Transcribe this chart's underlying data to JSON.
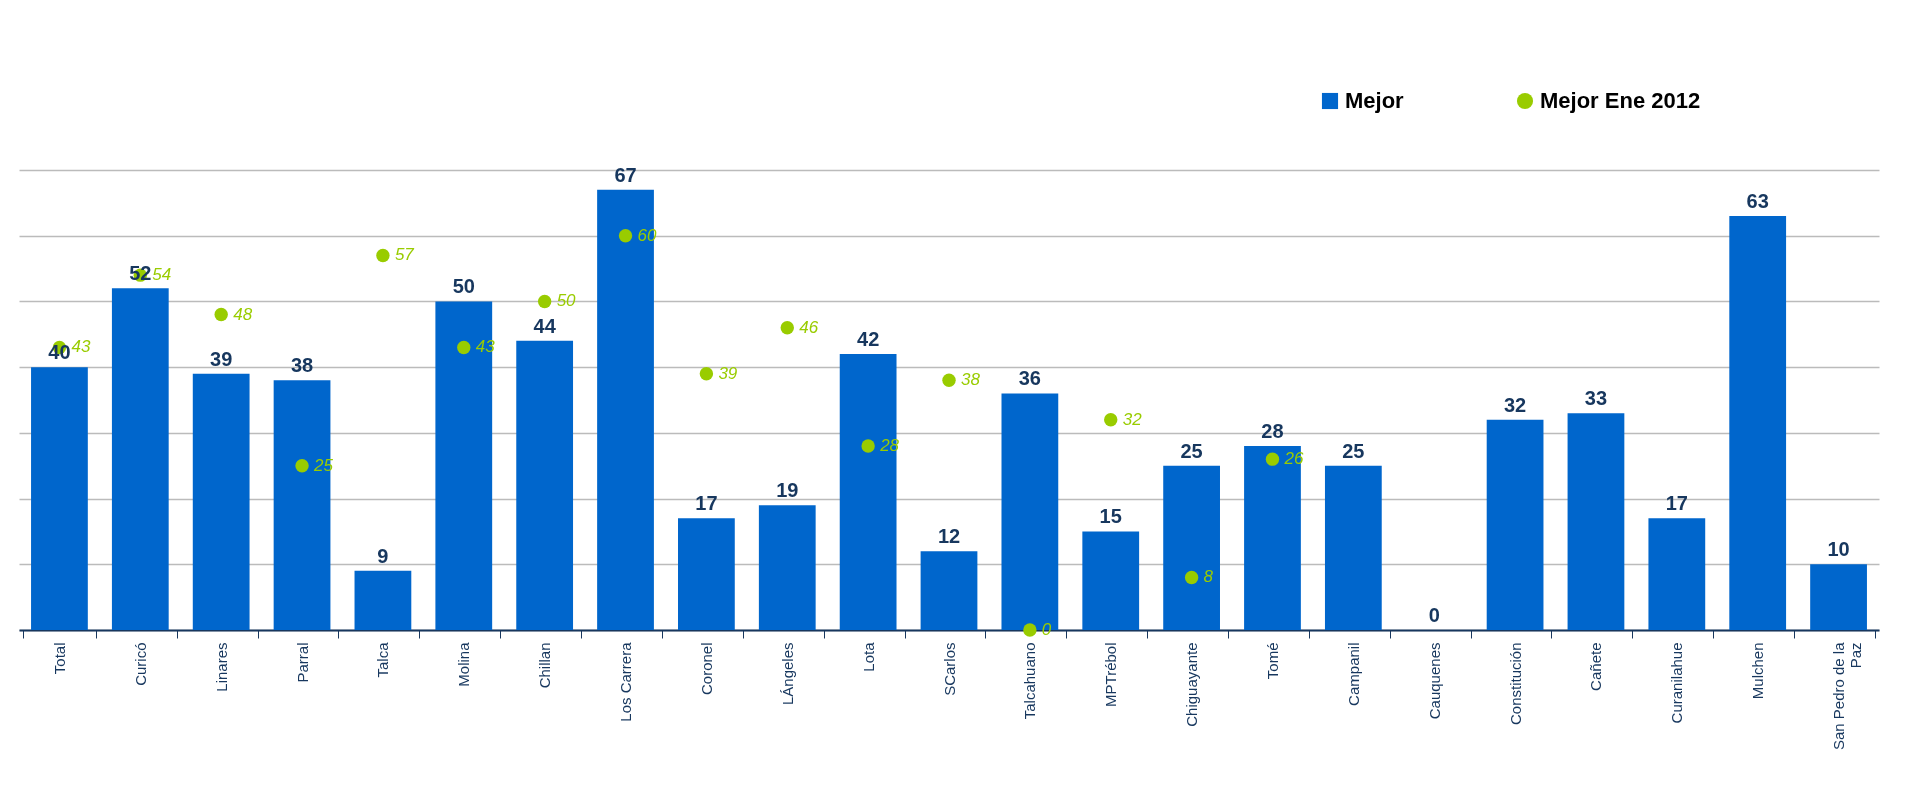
{
  "chart_data": {
    "type": "bar",
    "categories": [
      "Total",
      "Curicó",
      "Linares",
      "Parral",
      "Talca",
      "Molina",
      "Chillan",
      "Los Carrera",
      "Coronel",
      "LÁngeles",
      "Lota",
      "SCarlos",
      "Talcahuano",
      "MPTrébol",
      "Chiguayante",
      "Tomé",
      "Campanil",
      "Cauquenes",
      "Constitución",
      "Cañete",
      "Curanilahue",
      "Mulchen",
      "San Pedro de la Paz"
    ],
    "series": [
      {
        "name": "Mejor",
        "color": "#0066cc",
        "values": [
          40,
          52,
          39,
          38,
          9,
          50,
          44,
          67,
          17,
          19,
          42,
          12,
          36,
          15,
          25,
          28,
          25,
          0,
          32,
          33,
          17,
          63,
          10
        ]
      },
      {
        "name": "Mejor Ene 2012",
        "type": "scatter",
        "color": "#99cc00",
        "values": [
          43,
          54,
          48,
          25,
          57,
          43,
          50,
          60,
          39,
          46,
          28,
          38,
          0,
          32,
          8,
          26,
          null,
          null,
          null,
          null,
          null,
          null,
          null
        ]
      }
    ],
    "grid": "y",
    "legend": "top right",
    "data_labels": true,
    "marker": "circle"
  }
}
